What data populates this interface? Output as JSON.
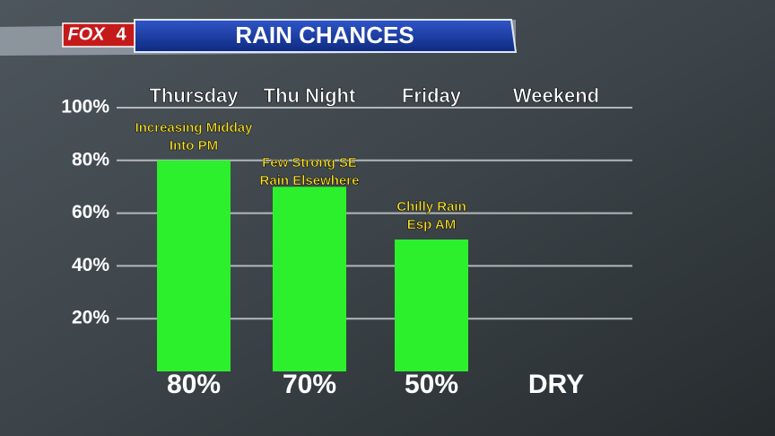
{
  "header": {
    "logo": "FOX",
    "channel": "4"
  },
  "chart_data": {
    "type": "bar",
    "title": "RAIN CHANCES",
    "categories": [
      "Thursday",
      "Thu Night",
      "Friday",
      "Weekend"
    ],
    "values": [
      80,
      70,
      50,
      0
    ],
    "value_labels": [
      "80%",
      "70%",
      "50%",
      "DRY"
    ],
    "annotations": [
      [
        "Increasing Midday",
        "Into PM"
      ],
      [
        "Few Strong SE",
        "Rain Elsewhere"
      ],
      [
        "Chilly Rain",
        "Esp AM"
      ]
    ],
    "color": "#2cf02c",
    "ylim": [
      0,
      100
    ],
    "yticks": [
      {
        "value": 20,
        "label": "20%"
      },
      {
        "value": 40,
        "label": "40%"
      },
      {
        "value": 60,
        "label": "60%"
      },
      {
        "value": 80,
        "label": "80%"
      },
      {
        "value": 100,
        "label": "100%"
      }
    ],
    "grid": true
  }
}
